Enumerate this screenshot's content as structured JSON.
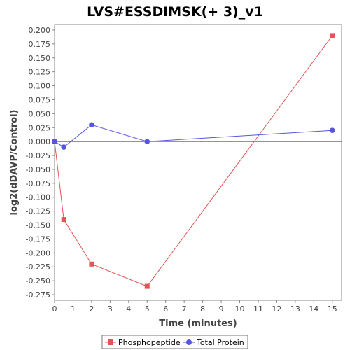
{
  "chart_data": {
    "type": "line",
    "title": "LVS#ESSDIMSK(+ 3)_v1",
    "xlabel": "Time (minutes)",
    "ylabel": "log2(dDAVP/Control)",
    "xlim": [
      0,
      15.5
    ],
    "ylim": [
      -0.285,
      0.21
    ],
    "xticks": [
      "0",
      "1",
      "2",
      "3",
      "4",
      "5",
      "6",
      "7",
      "8",
      "9",
      "10",
      "11",
      "12",
      "13",
      "14",
      "15"
    ],
    "yticks": [
      "0.200",
      "0.175",
      "0.150",
      "0.125",
      "0.100",
      "0.075",
      "0.050",
      "0.025",
      "0.000",
      "-0.025",
      "-0.050",
      "-0.075",
      "-0.100",
      "-0.125",
      "-0.150",
      "-0.175",
      "-0.200",
      "-0.225",
      "-0.250",
      "-0.275"
    ],
    "grid": false,
    "legend_position": "bottom",
    "series": [
      {
        "name": "Phosphopeptide",
        "color": "#e05555",
        "marker": "square",
        "x": [
          0,
          0.5,
          2,
          5,
          15
        ],
        "y": [
          0.0,
          -0.14,
          -0.22,
          -0.26,
          0.19
        ]
      },
      {
        "name": "Total Protein",
        "color": "#5555e0",
        "marker": "circle",
        "x": [
          0,
          0.5,
          2,
          5,
          15
        ],
        "y": [
          0.0,
          -0.01,
          0.03,
          0.0,
          0.02
        ]
      }
    ]
  }
}
